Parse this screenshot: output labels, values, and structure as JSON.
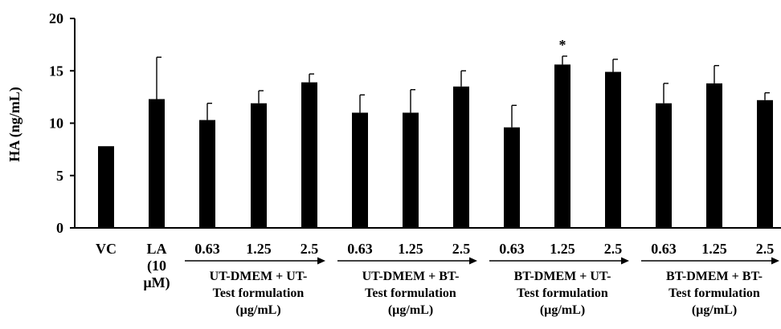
{
  "chart_data": {
    "type": "bar",
    "ylabel": "HA (ng/mL)",
    "xlabel": "",
    "ylim": [
      0,
      20
    ],
    "yticks": [
      0,
      5,
      10,
      15,
      20
    ],
    "categories": [
      "VC",
      "LA (10 µM)",
      "0.63",
      "1.25",
      "2.5",
      "0.63",
      "1.25",
      "2.5",
      "0.63",
      "1.25",
      "2.5",
      "0.63",
      "1.25",
      "2.5"
    ],
    "values": [
      7.8,
      12.3,
      10.3,
      11.9,
      13.9,
      11.0,
      11.0,
      13.5,
      9.6,
      15.6,
      14.9,
      11.9,
      13.8,
      12.2
    ],
    "errors": [
      0.1,
      4.0,
      1.6,
      1.2,
      0.8,
      1.7,
      2.2,
      1.5,
      2.1,
      0.8,
      1.2,
      1.9,
      1.7,
      0.7
    ],
    "bar_color": "#000000",
    "significance": [
      {
        "index": 9,
        "label": "*"
      }
    ],
    "category_label_lines": [
      [
        "VC"
      ],
      [
        "LA",
        "(10",
        "µM)"
      ]
    ],
    "groups": [
      {
        "lines": [
          "UT-DMEM + UT-",
          "Test formulation",
          "(µg/mL)"
        ]
      },
      {
        "lines": [
          "UT-DMEM + BT-",
          "Test formulation",
          "(µg/mL)"
        ]
      },
      {
        "lines": [
          "BT-DMEM + UT-",
          "Test formulation",
          "(µg/mL)"
        ]
      },
      {
        "lines": [
          "BT-DMEM + BT-",
          "Test formulation",
          "(µg/mL)"
        ]
      }
    ]
  }
}
